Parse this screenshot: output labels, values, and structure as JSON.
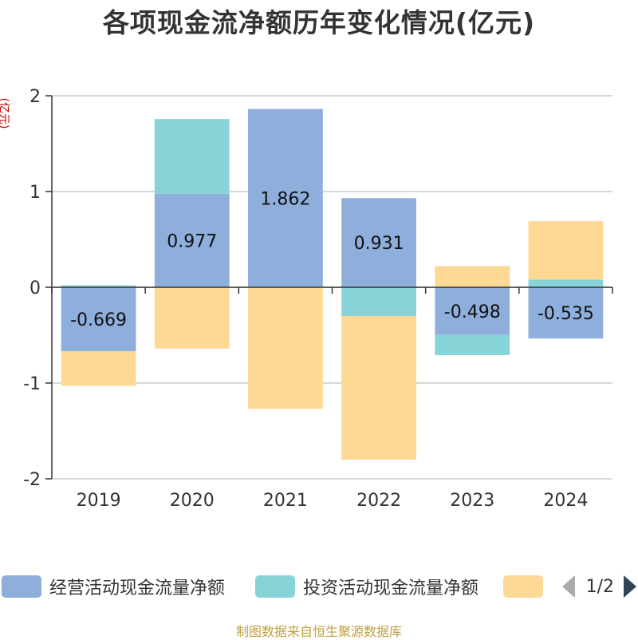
{
  "chart_data": {
    "type": "bar",
    "stacked": true,
    "title": "各项现金流净额历年变化情况(亿元)",
    "ylabel": "(亿元)",
    "ylim": [
      -2,
      2
    ],
    "yticks": [
      2,
      1,
      0,
      -1,
      -2
    ],
    "categories": [
      "2019",
      "2020",
      "2021",
      "2022",
      "2023",
      "2024"
    ],
    "series": [
      {
        "name": "经营活动现金流量净额",
        "color": "#8eaedb",
        "values": [
          -0.669,
          0.977,
          1.862,
          0.931,
          -0.498,
          -0.535
        ],
        "show_labels": true
      },
      {
        "name": "投资活动现金流量净额",
        "color": "#87d4d8",
        "values": [
          0.02,
          0.78,
          0.0,
          -0.3,
          -0.21,
          0.08
        ],
        "show_labels": false
      },
      {
        "name": "",
        "color": "#fed895",
        "values": [
          -0.36,
          -0.64,
          -1.27,
          -1.5,
          0.22,
          0.61
        ],
        "show_labels": false
      }
    ],
    "legend_position": "bottom"
  },
  "pager": {
    "text": "1/2"
  },
  "footer": {
    "source": "制图数据来自恒生聚源数据库"
  }
}
